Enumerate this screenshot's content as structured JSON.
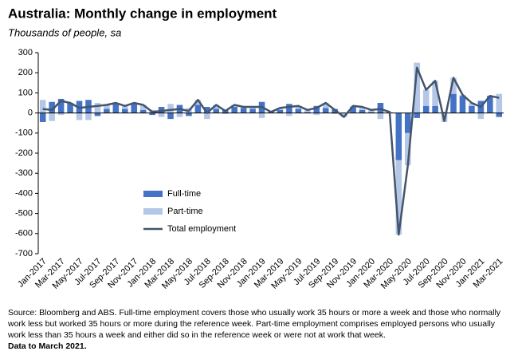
{
  "chart_data": {
    "type": "stacked_bar_line",
    "title": "Australia: Monthly change in employment",
    "subtitle": "Thousands of people, sa",
    "categories": [
      "Jan-2017",
      null,
      "Mar-2017",
      null,
      "May-2017",
      null,
      "Jul-2017",
      null,
      "Sep-2017",
      null,
      "Nov-2017",
      null,
      "Jan-2018",
      null,
      "Mar-2018",
      null,
      "May-2018",
      null,
      "Jul-2018",
      null,
      "Sep-2018",
      null,
      "Nov-2018",
      null,
      "Jan-2019",
      null,
      "Mar-2019",
      null,
      "May-2019",
      null,
      "Jul-2019",
      null,
      "Sep-2019",
      null,
      "Nov-2019",
      null,
      "Jan-2020",
      null,
      "Mar-2020",
      null,
      "May-2020",
      null,
      "Jul-2020",
      null,
      "Sep-2020",
      null,
      "Nov-2020",
      null,
      "Jan-2021",
      null,
      "Mar-2021"
    ],
    "series": [
      {
        "name": "Full-time",
        "color": "#4472c4",
        "kind": "bar",
        "values": [
          -45,
          55,
          70,
          50,
          60,
          65,
          -15,
          20,
          50,
          20,
          45,
          15,
          -10,
          30,
          -30,
          40,
          -15,
          40,
          30,
          20,
          15,
          30,
          25,
          20,
          55,
          5,
          15,
          45,
          20,
          5,
          35,
          25,
          20,
          0,
          30,
          15,
          5,
          50,
          0,
          -235,
          -100,
          -25,
          35,
          35,
          5,
          95,
          85,
          35,
          60,
          85,
          -20
        ]
      },
      {
        "name": "Part-time",
        "color": "#b4c7e7",
        "kind": "bar",
        "values": [
          65,
          -40,
          -10,
          0,
          -35,
          -35,
          50,
          20,
          0,
          15,
          5,
          25,
          15,
          -20,
          45,
          -20,
          25,
          25,
          -30,
          20,
          -5,
          10,
          5,
          10,
          -25,
          0,
          10,
          -15,
          15,
          10,
          -10,
          25,
          -5,
          -20,
          5,
          15,
          10,
          -30,
          5,
          -370,
          -160,
          250,
          80,
          125,
          -45,
          80,
          5,
          15,
          -30,
          0,
          95
        ]
      },
      {
        "name": "Total employment",
        "color": "#44546a",
        "kind": "line",
        "values": [
          20,
          15,
          60,
          50,
          25,
          30,
          35,
          40,
          50,
          35,
          50,
          40,
          5,
          10,
          15,
          20,
          10,
          65,
          0,
          40,
          10,
          40,
          30,
          30,
          30,
          5,
          25,
          30,
          35,
          15,
          25,
          50,
          15,
          -20,
          35,
          30,
          15,
          20,
          5,
          -605,
          -260,
          225,
          115,
          160,
          -40,
          175,
          90,
          50,
          30,
          85,
          75
        ]
      }
    ],
    "ylim": [
      -700,
      300
    ],
    "yticks": [
      -700,
      -600,
      -500,
      -400,
      -300,
      -200,
      -100,
      0,
      100,
      200,
      300
    ],
    "grid": false,
    "note": "Source: Bloomberg and ABS.  Full-time employment covers those who usually work 35 hours or more a week and those who normally work less but worked 35 hours or  more during the reference week.  Part-time employment comprises employed persons who usually work less than 35 hours a week and either did so in the reference week or were not at work that week.",
    "data_note": "Data to March 2021."
  }
}
